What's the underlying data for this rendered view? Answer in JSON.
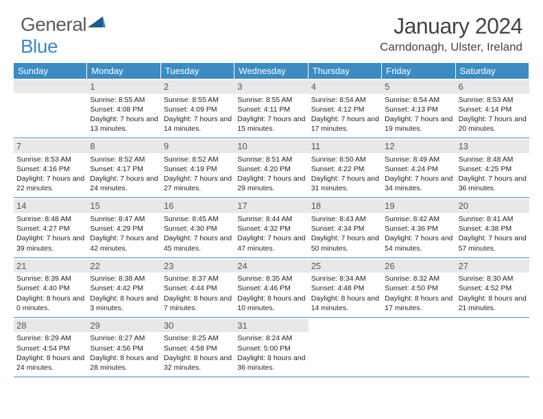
{
  "logo": {
    "general": "General",
    "blue": "Blue"
  },
  "header": {
    "month": "January 2024",
    "location": "Carndonagh, Ulster, Ireland"
  },
  "colors": {
    "header_bg": "#3b8bc4",
    "daynum_bg": "#e8e8e8",
    "text": "#222222",
    "logo_gray": "#5a5a5a",
    "logo_blue": "#3b8bc4",
    "border": "#3b8bc4"
  },
  "dayNames": [
    "Sunday",
    "Monday",
    "Tuesday",
    "Wednesday",
    "Thursday",
    "Friday",
    "Saturday"
  ],
  "firstDayOffset": 1,
  "days": [
    {
      "n": 1,
      "sr": "8:55 AM",
      "ss": "4:08 PM",
      "dl": "7 hours and 13 minutes."
    },
    {
      "n": 2,
      "sr": "8:55 AM",
      "ss": "4:09 PM",
      "dl": "7 hours and 14 minutes."
    },
    {
      "n": 3,
      "sr": "8:55 AM",
      "ss": "4:11 PM",
      "dl": "7 hours and 15 minutes."
    },
    {
      "n": 4,
      "sr": "8:54 AM",
      "ss": "4:12 PM",
      "dl": "7 hours and 17 minutes."
    },
    {
      "n": 5,
      "sr": "8:54 AM",
      "ss": "4:13 PM",
      "dl": "7 hours and 19 minutes."
    },
    {
      "n": 6,
      "sr": "8:53 AM",
      "ss": "4:14 PM",
      "dl": "7 hours and 20 minutes."
    },
    {
      "n": 7,
      "sr": "8:53 AM",
      "ss": "4:16 PM",
      "dl": "7 hours and 22 minutes."
    },
    {
      "n": 8,
      "sr": "8:52 AM",
      "ss": "4:17 PM",
      "dl": "7 hours and 24 minutes."
    },
    {
      "n": 9,
      "sr": "8:52 AM",
      "ss": "4:19 PM",
      "dl": "7 hours and 27 minutes."
    },
    {
      "n": 10,
      "sr": "8:51 AM",
      "ss": "4:20 PM",
      "dl": "7 hours and 29 minutes."
    },
    {
      "n": 11,
      "sr": "8:50 AM",
      "ss": "4:22 PM",
      "dl": "7 hours and 31 minutes."
    },
    {
      "n": 12,
      "sr": "8:49 AM",
      "ss": "4:24 PM",
      "dl": "7 hours and 34 minutes."
    },
    {
      "n": 13,
      "sr": "8:48 AM",
      "ss": "4:25 PM",
      "dl": "7 hours and 36 minutes."
    },
    {
      "n": 14,
      "sr": "8:48 AM",
      "ss": "4:27 PM",
      "dl": "7 hours and 39 minutes."
    },
    {
      "n": 15,
      "sr": "8:47 AM",
      "ss": "4:29 PM",
      "dl": "7 hours and 42 minutes."
    },
    {
      "n": 16,
      "sr": "8:45 AM",
      "ss": "4:30 PM",
      "dl": "7 hours and 45 minutes."
    },
    {
      "n": 17,
      "sr": "8:44 AM",
      "ss": "4:32 PM",
      "dl": "7 hours and 47 minutes."
    },
    {
      "n": 18,
      "sr": "8:43 AM",
      "ss": "4:34 PM",
      "dl": "7 hours and 50 minutes."
    },
    {
      "n": 19,
      "sr": "8:42 AM",
      "ss": "4:36 PM",
      "dl": "7 hours and 54 minutes."
    },
    {
      "n": 20,
      "sr": "8:41 AM",
      "ss": "4:38 PM",
      "dl": "7 hours and 57 minutes."
    },
    {
      "n": 21,
      "sr": "8:39 AM",
      "ss": "4:40 PM",
      "dl": "8 hours and 0 minutes."
    },
    {
      "n": 22,
      "sr": "8:38 AM",
      "ss": "4:42 PM",
      "dl": "8 hours and 3 minutes."
    },
    {
      "n": 23,
      "sr": "8:37 AM",
      "ss": "4:44 PM",
      "dl": "8 hours and 7 minutes."
    },
    {
      "n": 24,
      "sr": "8:35 AM",
      "ss": "4:46 PM",
      "dl": "8 hours and 10 minutes."
    },
    {
      "n": 25,
      "sr": "8:34 AM",
      "ss": "4:48 PM",
      "dl": "8 hours and 14 minutes."
    },
    {
      "n": 26,
      "sr": "8:32 AM",
      "ss": "4:50 PM",
      "dl": "8 hours and 17 minutes."
    },
    {
      "n": 27,
      "sr": "8:30 AM",
      "ss": "4:52 PM",
      "dl": "8 hours and 21 minutes."
    },
    {
      "n": 28,
      "sr": "8:29 AM",
      "ss": "4:54 PM",
      "dl": "8 hours and 24 minutes."
    },
    {
      "n": 29,
      "sr": "8:27 AM",
      "ss": "4:56 PM",
      "dl": "8 hours and 28 minutes."
    },
    {
      "n": 30,
      "sr": "8:25 AM",
      "ss": "4:58 PM",
      "dl": "8 hours and 32 minutes."
    },
    {
      "n": 31,
      "sr": "8:24 AM",
      "ss": "5:00 PM",
      "dl": "8 hours and 36 minutes."
    }
  ],
  "labels": {
    "sunrise": "Sunrise:",
    "sunset": "Sunset:",
    "daylight": "Daylight:"
  }
}
